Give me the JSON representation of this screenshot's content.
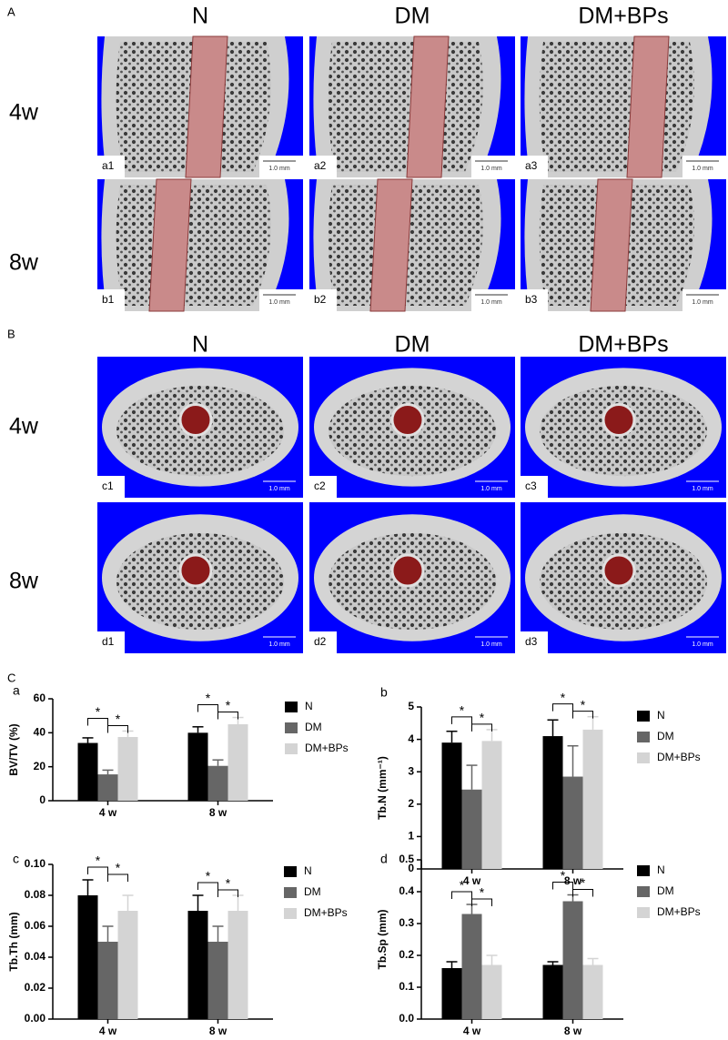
{
  "panel_A": {
    "label": "A",
    "columns": [
      "N",
      "DM",
      "DM+BPs"
    ],
    "rows": [
      "4w",
      "8w"
    ],
    "tiles": [
      [
        "a1",
        "a2",
        "a3"
      ],
      [
        "b1",
        "b2",
        "b3"
      ]
    ],
    "scale_bar": "1.0 mm"
  },
  "panel_B": {
    "label": "B",
    "columns": [
      "N",
      "DM",
      "DM+BPs"
    ],
    "rows": [
      "4w",
      "8w"
    ],
    "tiles": [
      [
        "c1",
        "c2",
        "c3"
      ],
      [
        "d1",
        "d2",
        "d3"
      ]
    ],
    "scale_bar": "1.0 mm"
  },
  "panel_C_label": "C",
  "chart_data": [
    {
      "type": "bar",
      "panel": "a",
      "y_label": "BV/TV (%)",
      "categories": [
        "4 w",
        "8 w"
      ],
      "series": [
        {
          "name": "N",
          "color": "#000000",
          "values": [
            34,
            40
          ],
          "errors": [
            3,
            3.5
          ]
        },
        {
          "name": "DM",
          "color": "#666666",
          "values": [
            15.5,
            20.5
          ],
          "errors": [
            2.5,
            3.5
          ]
        },
        {
          "name": "DM+BPs",
          "color": "#d4d4d4",
          "values": [
            37.5,
            45
          ],
          "errors": [
            3.5,
            4
          ]
        }
      ],
      "ylim": [
        0,
        60
      ],
      "yticks": [
        0,
        20,
        40,
        60
      ],
      "annotations": [
        {
          "text": "*",
          "category": 0,
          "between": [
            0,
            1
          ]
        },
        {
          "text": "*",
          "category": 0,
          "between": [
            1,
            2
          ]
        },
        {
          "text": "*",
          "category": 1,
          "between": [
            0,
            1
          ]
        },
        {
          "text": "*",
          "category": 1,
          "between": [
            1,
            2
          ]
        }
      ]
    },
    {
      "type": "bar",
      "panel": "b",
      "y_label": "Tb.N (mm⁻¹)",
      "categories": [
        "4 w",
        "8 w"
      ],
      "series": [
        {
          "name": "N",
          "color": "#000000",
          "values": [
            3.9,
            4.1
          ],
          "errors": [
            0.35,
            0.5
          ]
        },
        {
          "name": "DM",
          "color": "#666666",
          "values": [
            2.45,
            2.85
          ],
          "errors": [
            0.75,
            0.95
          ]
        },
        {
          "name": "DM+BPs",
          "color": "#d4d4d4",
          "values": [
            3.95,
            4.3
          ],
          "errors": [
            0.35,
            0.4
          ]
        }
      ],
      "ylim": [
        0,
        5
      ],
      "yticks": [
        0,
        1,
        2,
        3,
        4,
        5
      ],
      "annotations": [
        {
          "text": "*",
          "category": 0,
          "between": [
            0,
            1
          ]
        },
        {
          "text": "*",
          "category": 0,
          "between": [
            1,
            2
          ]
        },
        {
          "text": "*",
          "category": 1,
          "between": [
            0,
            1
          ]
        },
        {
          "text": "*",
          "category": 1,
          "between": [
            1,
            2
          ]
        }
      ]
    },
    {
      "type": "bar",
      "panel": "c",
      "y_label": "Tb.Th (mm)",
      "categories": [
        "4 w",
        "8 w"
      ],
      "series": [
        {
          "name": "N",
          "color": "#000000",
          "values": [
            0.08,
            0.07
          ],
          "errors": [
            0.01,
            0.01
          ]
        },
        {
          "name": "DM",
          "color": "#666666",
          "values": [
            0.05,
            0.05
          ],
          "errors": [
            0.01,
            0.01
          ]
        },
        {
          "name": "DM+BPs",
          "color": "#d4d4d4",
          "values": [
            0.07,
            0.07
          ],
          "errors": [
            0.01,
            0.01
          ]
        }
      ],
      "ylim": [
        0,
        0.1
      ],
      "yticks": [
        {
          "value": 0,
          "label": "0.00"
        },
        {
          "value": 0.02,
          "label": "0.02"
        },
        {
          "value": 0.04,
          "label": "0.04"
        },
        {
          "value": 0.06,
          "label": "0.06"
        },
        {
          "value": 0.08,
          "label": "0.08"
        },
        {
          "value": 0.1,
          "label": "0.10"
        }
      ],
      "annotations": [
        {
          "text": "*",
          "category": 0,
          "between": [
            0,
            1
          ]
        },
        {
          "text": "*",
          "category": 0,
          "between": [
            1,
            2
          ]
        },
        {
          "text": "*",
          "category": 1,
          "between": [
            0,
            1
          ]
        },
        {
          "text": "*",
          "category": 1,
          "between": [
            1,
            2
          ]
        }
      ]
    },
    {
      "type": "bar",
      "panel": "d",
      "y_label": "Tb.Sp (mm)",
      "categories": [
        "4 w",
        "8 w"
      ],
      "series": [
        {
          "name": "N",
          "color": "#000000",
          "values": [
            0.16,
            0.17
          ],
          "errors": [
            0.02,
            0.01
          ]
        },
        {
          "name": "DM",
          "color": "#666666",
          "values": [
            0.33,
            0.37
          ],
          "errors": [
            0.03,
            0.02
          ]
        },
        {
          "name": "DM+BPs",
          "color": "#d4d4d4",
          "values": [
            0.17,
            0.17
          ],
          "errors": [
            0.03,
            0.02
          ]
        }
      ],
      "ylim": [
        0,
        0.5
      ],
      "yticks": [
        {
          "value": 0,
          "label": "0.0"
        },
        0.1,
        0.2,
        0.3,
        0.4,
        0.5
      ],
      "annotations": [
        {
          "text": "*",
          "category": 0,
          "between": [
            0,
            1
          ]
        },
        {
          "text": "*",
          "category": 0,
          "between": [
            1,
            2
          ]
        },
        {
          "text": "*",
          "category": 1,
          "between": [
            0,
            1
          ]
        },
        {
          "text": "*",
          "category": 1,
          "between": [
            1,
            2
          ]
        }
      ]
    }
  ]
}
